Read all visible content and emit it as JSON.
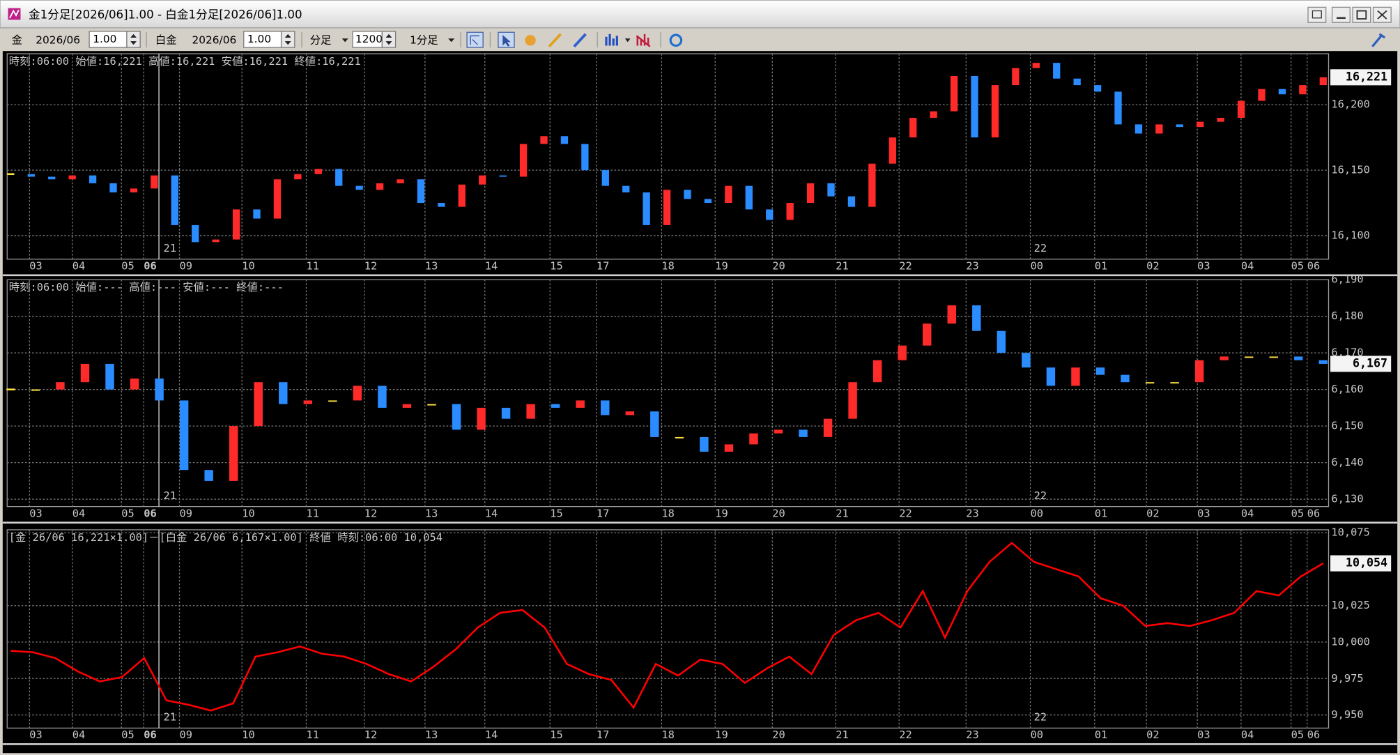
{
  "window": {
    "title": "金1分足[2026/06]1.00 - 白金1分足[2026/06]1.00"
  },
  "toolbar": {
    "symbol1": "金",
    "month1": "2026/06",
    "mult1": "1.00",
    "symbol2": "白金",
    "month2": "2026/06",
    "mult2": "1.00",
    "unit": "分足",
    "count": "1200",
    "interval": "1分足"
  },
  "x_labels": [
    "03",
    "04",
    "05",
    "06",
    "09",
    "10",
    "11",
    "12",
    "13",
    "14",
    "15",
    "17",
    "18",
    "19",
    "20",
    "21",
    "22",
    "23",
    "00",
    "01",
    "02",
    "03",
    "04",
    "05",
    "06"
  ],
  "day_markers": [
    "21",
    "22"
  ],
  "panels": [
    {
      "type": "candle",
      "header": "時刻:06:00 始値:16,221 高値:16,221 安値:16,221 終値:16,221",
      "ylim": [
        16082,
        16239
      ],
      "yticks": [
        {
          "value": 16100,
          "label": "16,100"
        },
        {
          "value": 16150,
          "label": "16,150"
        },
        {
          "value": 16200,
          "label": "16,200"
        }
      ],
      "last": {
        "value": 16221,
        "label": "16,221"
      },
      "up_color": "#ff2a2a",
      "down_color": "#2a8cff",
      "values": [
        16147,
        16145,
        16143,
        16146,
        16140,
        16133,
        16136,
        16146,
        16108,
        16095,
        16097,
        16120,
        16113,
        16143,
        16147,
        16151,
        16138,
        16135,
        16140,
        16143,
        16125,
        16122,
        16139,
        16146,
        16145,
        16170,
        16176,
        16170,
        16150,
        16138,
        16133,
        16108,
        16135,
        16128,
        16125,
        16138,
        16120,
        16112,
        16125,
        16140,
        16130,
        16122,
        16155,
        16175,
        16190,
        16195,
        16222,
        16175,
        16215,
        16228,
        16232,
        16220,
        16215,
        16210,
        16185,
        16178,
        16185,
        16183,
        16187,
        16190,
        16203,
        16212,
        16208,
        16215,
        16221
      ]
    },
    {
      "type": "candle",
      "header": "時刻:06:00 始値:--- 高値:--- 安値:--- 終値:---",
      "ylim": [
        6128,
        6190
      ],
      "yticks": [
        {
          "value": 6130,
          "label": "6,130"
        },
        {
          "value": 6140,
          "label": "6,140"
        },
        {
          "value": 6150,
          "label": "6,150"
        },
        {
          "value": 6160,
          "label": "6,160"
        },
        {
          "value": 6170,
          "label": "6,170"
        },
        {
          "value": 6180,
          "label": "6,180"
        },
        {
          "value": 6190,
          "label": "6,190"
        }
      ],
      "last": {
        "value": 6167,
        "label": "6,167"
      },
      "up_color": "#ff2a2a",
      "down_color": "#2a8cff",
      "values": [
        6160,
        6160,
        6162,
        6167,
        6160,
        6163,
        6157,
        6138,
        6135,
        6150,
        6162,
        6156,
        6157,
        6157,
        6161,
        6155,
        6156,
        6156,
        6149,
        6155,
        6152,
        6156,
        6155,
        6157,
        6153,
        6154,
        6147,
        6147,
        6143,
        6145,
        6148,
        6149,
        6147,
        6152,
        6162,
        6168,
        6172,
        6178,
        6183,
        6176,
        6170,
        6166,
        6161,
        6166,
        6164,
        6162,
        6162,
        6162,
        6168,
        6169,
        6169,
        6169,
        6168,
        6167
      ]
    },
    {
      "type": "line",
      "header": "[金 26/06 16,221×1.00]－[白金 26/06 6,167×1.00] 終値 時刻:06:00 10,054",
      "ylim": [
        9941,
        10077
      ],
      "yticks": [
        {
          "value": 9950,
          "label": "9,950"
        },
        {
          "value": 9975,
          "label": "9,975"
        },
        {
          "value": 10000,
          "label": "10,000"
        },
        {
          "value": 10025,
          "label": "10,025"
        },
        {
          "value": 10075,
          "label": "10,075"
        }
      ],
      "last": {
        "value": 10054,
        "label": "10,054"
      },
      "color": "#ff0000",
      "values": [
        9994,
        9993,
        9989,
        9980,
        9973,
        9976,
        9989,
        9960,
        9957,
        9953,
        9958,
        9990,
        9993,
        9997,
        9992,
        9990,
        9985,
        9978,
        9973,
        9983,
        9995,
        10010,
        10020,
        10022,
        10010,
        9985,
        9978,
        9974,
        9955,
        9985,
        9977,
        9988,
        9985,
        9972,
        9982,
        9990,
        9978,
        10005,
        10015,
        10020,
        10010,
        10035,
        10003,
        10035,
        10055,
        10068,
        10055,
        10050,
        10045,
        10030,
        10025,
        10011,
        10013,
        10011,
        10015,
        10020,
        10035,
        10032,
        10045,
        10054
      ]
    }
  ]
}
